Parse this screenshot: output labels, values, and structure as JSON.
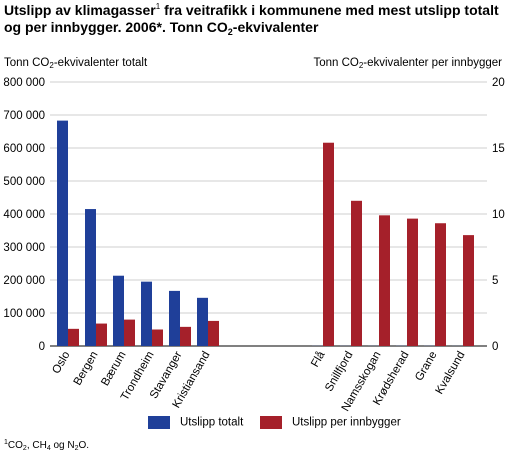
{
  "title": {
    "part1": "Utslipp av klimagasser",
    "footnote_ref": "1",
    "part2": " fra veitrafikk i kommunene med mest utslipp totalt og per innbygger. 2006*. Tonn CO",
    "sub": "2",
    "part3": "-ekvivalenter"
  },
  "y_left_title": {
    "pre": "Tonn CO",
    "sub": "2",
    "post": "-ekvivalenter totalt"
  },
  "y_right_title": {
    "pre": "Tonn CO",
    "sub": "2",
    "post": "-ekvivalenter per innbygger"
  },
  "footnote": {
    "ref": "1",
    "a": "CO",
    "a_sub": "2",
    "b": ", CH",
    "b_sub": "4",
    "c": " og N",
    "c_sub": "2",
    "d": "O."
  },
  "chart_data": {
    "type": "bar",
    "categories": [
      "Oslo",
      "Bergen",
      "Bærum",
      "Trondheim",
      "Stavanger",
      "Kristiansand",
      "Flå",
      "Snillfjord",
      "Namsskogan",
      "Krødsherad",
      "Grane",
      "Kvalsund"
    ],
    "series": [
      {
        "name": "Utslipp totalt",
        "axis": "left",
        "color": "#1f3f99",
        "values": [
          683000,
          415000,
          213000,
          195000,
          167000,
          146000,
          415,
          385,
          329,
          510,
          439,
          289
        ]
      },
      {
        "name": "Utslipp per innbygger",
        "axis": "right",
        "color": "#a5202a",
        "values": [
          1.3,
          1.7,
          2.0,
          1.25,
          1.45,
          1.9,
          15.4,
          11.0,
          9.9,
          9.65,
          9.3,
          8.4
        ]
      }
    ],
    "y_left": {
      "min": 0,
      "max": 800000,
      "ticks": [
        "0",
        "100 000",
        "200 000",
        "300 000",
        "400 000",
        "500 000",
        "600 000",
        "700 000",
        "800 000"
      ]
    },
    "y_right": {
      "min": 0,
      "max": 20,
      "ticks": [
        "0",
        "5",
        "10",
        "15",
        "20"
      ]
    },
    "grid": true,
    "legend": "bottom"
  }
}
